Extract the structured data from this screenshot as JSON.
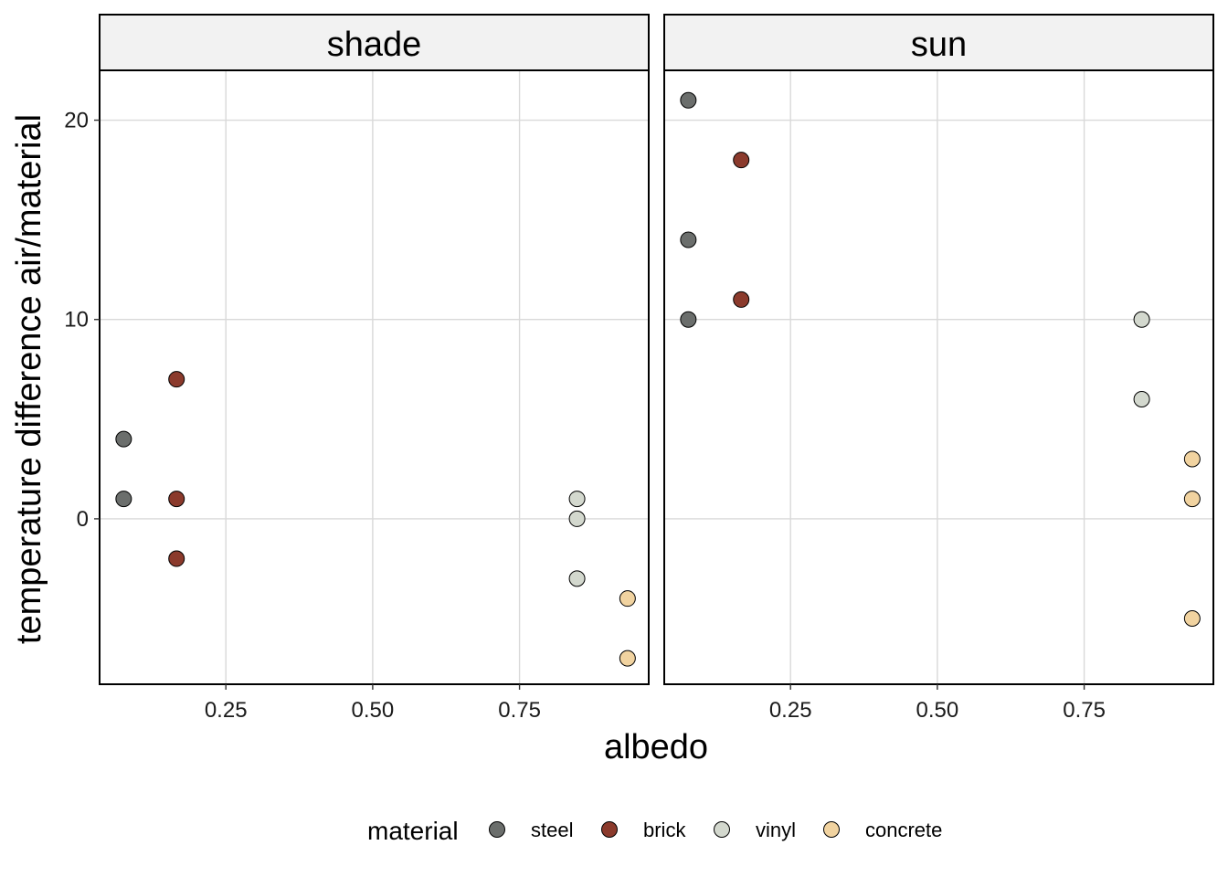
{
  "chart_data": {
    "type": "scatter",
    "xlabel": "albedo",
    "ylabel": "temperature difference air/material",
    "xlim": [
      0.035,
      0.97
    ],
    "ylim": [
      -8.3,
      22.5
    ],
    "x_ticks": [
      0.25,
      0.5,
      0.75
    ],
    "x_tick_labels": [
      "0.25",
      "0.50",
      "0.75"
    ],
    "y_ticks": [
      0,
      10,
      20
    ],
    "y_tick_labels": [
      "0",
      "10",
      "20"
    ],
    "grid": true,
    "legend": {
      "title": "material",
      "position": "bottom",
      "entries": [
        {
          "name": "steel",
          "color": "#6b6e6c"
        },
        {
          "name": "brick",
          "color": "#8b3a2c"
        },
        {
          "name": "vinyl",
          "color": "#d3d8ce"
        },
        {
          "name": "concrete",
          "color": "#f1d3a0"
        }
      ]
    },
    "panels": [
      {
        "label": "shade",
        "points": [
          {
            "material": "steel",
            "x": 0.076,
            "y": 4
          },
          {
            "material": "steel",
            "x": 0.076,
            "y": 1
          },
          {
            "material": "brick",
            "x": 0.166,
            "y": 7
          },
          {
            "material": "brick",
            "x": 0.166,
            "y": 1
          },
          {
            "material": "brick",
            "x": 0.166,
            "y": -2
          },
          {
            "material": "vinyl",
            "x": 0.848,
            "y": 1
          },
          {
            "material": "vinyl",
            "x": 0.848,
            "y": 0
          },
          {
            "material": "vinyl",
            "x": 0.848,
            "y": -3
          },
          {
            "material": "concrete",
            "x": 0.934,
            "y": -4
          },
          {
            "material": "concrete",
            "x": 0.934,
            "y": -7
          }
        ]
      },
      {
        "label": "sun",
        "points": [
          {
            "material": "steel",
            "x": 0.076,
            "y": 21
          },
          {
            "material": "steel",
            "x": 0.076,
            "y": 14
          },
          {
            "material": "steel",
            "x": 0.076,
            "y": 10
          },
          {
            "material": "brick",
            "x": 0.166,
            "y": 18
          },
          {
            "material": "brick",
            "x": 0.166,
            "y": 11
          },
          {
            "material": "vinyl",
            "x": 0.848,
            "y": 10
          },
          {
            "material": "vinyl",
            "x": 0.848,
            "y": 6
          },
          {
            "material": "concrete",
            "x": 0.934,
            "y": 3
          },
          {
            "material": "concrete",
            "x": 0.934,
            "y": 1
          },
          {
            "material": "concrete",
            "x": 0.934,
            "y": -5
          }
        ]
      }
    ]
  }
}
